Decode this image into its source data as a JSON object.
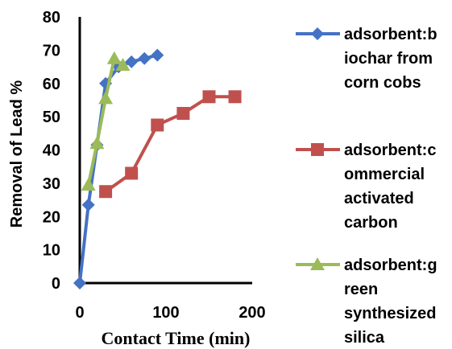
{
  "chart_data": {
    "type": "line",
    "xlabel": "Contact Time (min)",
    "ylabel": "Removal of Lead %",
    "xlim": [
      0,
      200
    ],
    "ylim": [
      0,
      80
    ],
    "xticks": [
      "0",
      "100",
      "200"
    ],
    "yticks": [
      "0",
      "10",
      "20",
      "30",
      "40",
      "50",
      "60",
      "70",
      "80"
    ],
    "grid": false,
    "legend_position": "right",
    "series": [
      {
        "name": "adsorbent:biochar from corn cobs",
        "legend_lines": [
          "adsorbent:b",
          "iochar from",
          "corn cobs"
        ],
        "color": "#4472C4",
        "marker": "diamond",
        "x": [
          0,
          10,
          20,
          30,
          45,
          60,
          75,
          90
        ],
        "y": [
          0,
          23.5,
          41.5,
          60,
          65,
          66.5,
          67.5,
          68.5
        ]
      },
      {
        "name": "adsorbent:commercial activated carbon",
        "legend_lines": [
          "adsorbent:c",
          "ommercial",
          "activated",
          "carbon"
        ],
        "color": "#C0504D",
        "marker": "square",
        "x": [
          30,
          60,
          90,
          120,
          150,
          180
        ],
        "y": [
          27.5,
          33,
          47.5,
          51,
          56,
          56
        ]
      },
      {
        "name": "adsorbent:green synthesized silica",
        "legend_lines": [
          "adsorbent:g",
          "reen",
          "synthesized",
          "silica"
        ],
        "color": "#9BBB59",
        "marker": "triangle",
        "x": [
          10,
          20,
          30,
          40,
          50
        ],
        "y": [
          29.5,
          42,
          55.5,
          67.5,
          65.5
        ]
      }
    ]
  }
}
